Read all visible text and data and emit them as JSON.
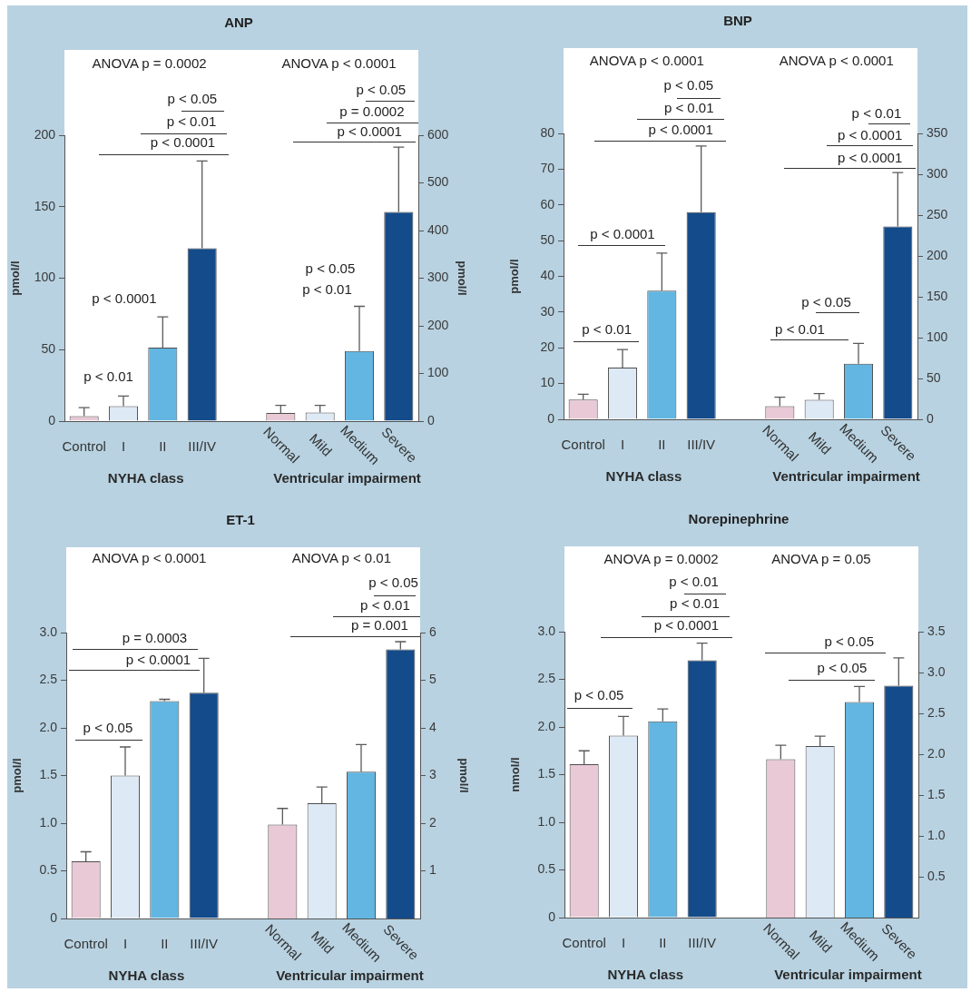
{
  "chart_data": [
    {
      "type": "bar",
      "title": "ANP",
      "ylabel": "pmol/l",
      "y2label": "pmol/l",
      "categories": [
        "Control",
        "I",
        "II",
        "III/IV",
        null,
        "Normal",
        "Mild",
        "Medium",
        "Severe"
      ],
      "series": [
        {
          "values": [
            3.5,
            10.5,
            51.5,
            121,
            null,
            null,
            null,
            null,
            null
          ],
          "errors": [
            [
              3.5,
              9.5
            ],
            [
              10.5,
              17.5
            ],
            [
              51.5,
              73
            ],
            [
              121,
              182
            ],
            null,
            null,
            null,
            null,
            null
          ],
          "colors": [
            "#e9c9d6",
            "#dde9f4",
            "#62b6e1",
            "#144b8a",
            null,
            null,
            null,
            null,
            null
          ]
        },
        {
          "axis": "y2",
          "values": [
            null,
            null,
            null,
            null,
            null,
            17,
            18,
            147,
            439
          ],
          "errors": [
            null,
            null,
            null,
            null,
            null,
            [
              17,
              33
            ],
            [
              18,
              33
            ],
            [
              147,
              241
            ],
            [
              439,
              575
            ]
          ],
          "colors": [
            null,
            null,
            null,
            null,
            null,
            "#e9c9d6",
            "#dde9f4",
            "#62b6e1",
            "#144b8a"
          ]
        }
      ],
      "ylim": [
        0,
        200
      ],
      "yticks": [
        0,
        50,
        100,
        150,
        200
      ],
      "y2lim": [
        0,
        600
      ],
      "y2ticks": [
        0,
        100,
        200,
        300,
        400,
        500,
        600
      ],
      "annotations": [
        "NYHA class",
        "Ventricular impairment",
        "ANOVA p = 0.0002",
        "ANOVA p < 0.0001",
        "p < 0.05",
        "p < 0.01",
        "p < 0.0001",
        "p < 0.01",
        "p < 0.0001",
        "p < 0.05",
        "p = 0.0002",
        "p < 0.0001",
        "p < 0.05",
        "p < 0.01"
      ]
    },
    {
      "type": "bar",
      "title": "BNP",
      "ylabel": "pmol/l",
      "categories": [
        "Control",
        "I",
        "II",
        "III/IV",
        null,
        "Normal",
        "Mild",
        "Medium",
        "Severe"
      ],
      "series": [
        {
          "values": [
            5.5,
            14.5,
            36,
            58,
            null,
            null,
            null,
            null,
            null
          ],
          "errors": [
            [
              5.5,
              7
            ],
            [
              14.5,
              19.5
            ],
            [
              36,
              46.5
            ],
            [
              58,
              76.5
            ],
            null,
            null,
            null,
            null,
            null
          ],
          "colors": [
            "#e9c9d6",
            "#dde9f4",
            "#62b6e1",
            "#144b8a",
            null,
            null,
            null,
            null,
            null
          ]
        },
        {
          "axis": "y2",
          "values": [
            null,
            null,
            null,
            null,
            null,
            16,
            24,
            68,
            236
          ],
          "errors": [
            null,
            null,
            null,
            null,
            null,
            [
              16,
              27
            ],
            [
              24,
              31.5
            ],
            [
              68,
              93
            ],
            [
              236,
              302
            ]
          ],
          "colors": [
            null,
            null,
            null,
            null,
            null,
            "#e9c9d6",
            "#dde9f4",
            "#62b6e1",
            "#144b8a"
          ]
        }
      ],
      "ylim": [
        0,
        80
      ],
      "yticks": [
        0,
        10,
        20,
        30,
        40,
        50,
        60,
        70,
        80
      ],
      "y2lim": [
        0,
        350
      ],
      "y2ticks": [
        0,
        50,
        100,
        150,
        200,
        250,
        300,
        350
      ],
      "annotations": [
        "NYHA class",
        "Ventricular impairment",
        "ANOVA p < 0.0001",
        "ANOVA p < 0.0001",
        "p < 0.05",
        "p < 0.01",
        "p < 0.0001",
        "p < 0.0001",
        "p < 0.01",
        "p < 0.01",
        "p < 0.0001",
        "p < 0.0001",
        "p < 0.05",
        "p < 0.01"
      ]
    },
    {
      "type": "bar",
      "title": "ET-1",
      "ylabel": "pmol/l",
      "y2label": "pmol/l",
      "categories": [
        "Control",
        "I",
        "II",
        "III/IV",
        null,
        "Normal",
        "Mild",
        "Medium",
        "Severe"
      ],
      "series": [
        {
          "values": [
            0.6,
            1.5,
            2.28,
            2.37,
            null,
            null,
            null,
            null,
            null
          ],
          "errors": [
            [
              0.6,
              0.7
            ],
            [
              1.5,
              1.8
            ],
            [
              2.28,
              2.3
            ],
            [
              2.37,
              2.73
            ],
            null,
            null,
            null,
            null,
            null
          ],
          "colors": [
            "#e9c9d6",
            "#dde9f4",
            "#62b6e1",
            "#144b8a",
            null,
            null,
            null,
            null,
            null
          ]
        },
        {
          "axis": "y2",
          "values": [
            null,
            null,
            null,
            null,
            null,
            1.97,
            2.42,
            3.08,
            5.65
          ],
          "errors": [
            null,
            null,
            null,
            null,
            null,
            [
              1.97,
              2.31
            ],
            [
              2.42,
              2.76
            ],
            [
              3.08,
              3.65
            ],
            [
              5.65,
              5.81
            ]
          ],
          "colors": [
            null,
            null,
            null,
            null,
            null,
            "#e9c9d6",
            "#dde9f4",
            "#62b6e1",
            "#144b8a"
          ]
        }
      ],
      "ylim": [
        0,
        3
      ],
      "yticks": [
        0,
        0.5,
        {
          "value": 1,
          "label": "1.0"
        },
        1.5,
        {
          "value": 2,
          "label": "2.0"
        },
        2.5,
        {
          "value": 3,
          "label": "3.0"
        }
      ],
      "y2lim": [
        0,
        6
      ],
      "y2ticks": [
        1,
        2,
        3,
        4,
        5,
        6
      ],
      "annotations": [
        "NYHA class",
        "Ventricular impairment",
        "ANOVA p < 0.0001",
        "ANOVA p < 0.01",
        "p = 0.0003",
        "p < 0.0001",
        "p < 0.05",
        "p < 0.05",
        "p < 0.01",
        "p = 0.001"
      ]
    },
    {
      "type": "bar",
      "title": "Norepinephrine",
      "ylabel": "nmol/l",
      "categories": [
        "Control",
        "I",
        "II",
        "III/IV",
        null,
        "Normal",
        "Mild",
        "Medium",
        "Severe"
      ],
      "series": [
        {
          "values": [
            1.61,
            1.91,
            2.06,
            2.7,
            null,
            null,
            null,
            null,
            null
          ],
          "errors": [
            [
              1.61,
              1.75
            ],
            [
              1.91,
              2.11
            ],
            [
              2.06,
              2.19
            ],
            [
              2.7,
              2.88
            ],
            null,
            null,
            null,
            null,
            null
          ],
          "colors": [
            "#e9c9d6",
            "#dde9f4",
            "#62b6e1",
            "#144b8a",
            null,
            null,
            null,
            null,
            null
          ]
        },
        {
          "axis": "y2",
          "values": [
            null,
            null,
            null,
            null,
            null,
            1.94,
            2.1,
            2.64,
            2.84
          ],
          "errors": [
            null,
            null,
            null,
            null,
            null,
            [
              1.94,
              2.11
            ],
            [
              2.1,
              2.22
            ],
            [
              2.64,
              2.83
            ],
            [
              2.84,
              3.18
            ]
          ],
          "colors": [
            null,
            null,
            null,
            null,
            null,
            "#e9c9d6",
            "#dde9f4",
            "#62b6e1",
            "#144b8a"
          ]
        }
      ],
      "ylim": [
        0,
        3
      ],
      "yticks": [
        0,
        0.5,
        {
          "value": 1,
          "label": "1.0"
        },
        1.5,
        {
          "value": 2,
          "label": "2.0"
        },
        2.5,
        {
          "value": 3,
          "label": "3.0"
        }
      ],
      "y2lim": [
        0,
        3.5
      ],
      "y2ticks": [
        0.5,
        {
          "value": 1,
          "label": "1.0"
        },
        1.5,
        {
          "value": 2,
          "label": "2.0"
        },
        2.5,
        {
          "value": 3,
          "label": "3.0"
        },
        3.5
      ],
      "annotations": [
        "NYHA class",
        "Ventricular impairment",
        "ANOVA p = 0.0002",
        "ANOVA p = 0.05",
        "p < 0.01",
        "p < 0.01",
        "p < 0.0001",
        "p < 0.05",
        "p < 0.05",
        "p < 0.05"
      ]
    }
  ]
}
